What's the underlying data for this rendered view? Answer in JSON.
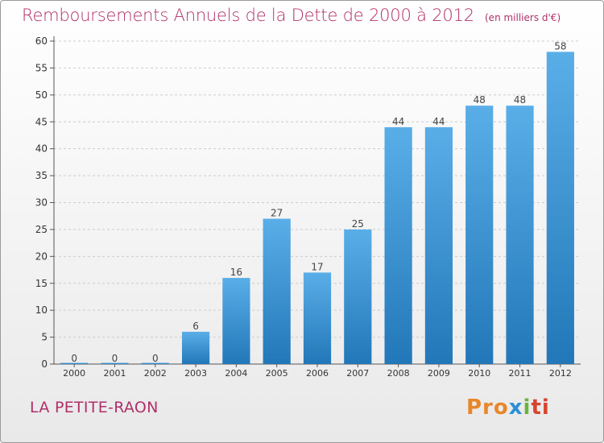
{
  "header": {
    "title": "Remboursements Annuels de la Dette de 2000 à 2012",
    "unit": "(en milliers d'€)"
  },
  "footer": {
    "commune": "LA PETITE-RAON",
    "logo": {
      "part1": "Pro",
      "part2": "x",
      "part3": "i",
      "part4": "ti"
    }
  },
  "colors": {
    "title": "#b0306a",
    "bar_top": "#5aaee8",
    "bar_bottom": "#2277b8",
    "grid": "#cccccc"
  },
  "chart_data": {
    "type": "bar",
    "title": "Remboursements Annuels de la Dette de 2000 à 2012",
    "xlabel": "",
    "ylabel": "",
    "ylim": [
      0,
      60
    ],
    "yticks": [
      0,
      5,
      10,
      15,
      20,
      25,
      30,
      35,
      40,
      45,
      50,
      55,
      60
    ],
    "grid": true,
    "categories": [
      "2000",
      "2001",
      "2002",
      "2003",
      "2004",
      "2005",
      "2006",
      "2007",
      "2008",
      "2009",
      "2010",
      "2011",
      "2012"
    ],
    "values": [
      0,
      0,
      0,
      6,
      16,
      27,
      17,
      25,
      44,
      44,
      48,
      48,
      58
    ]
  }
}
